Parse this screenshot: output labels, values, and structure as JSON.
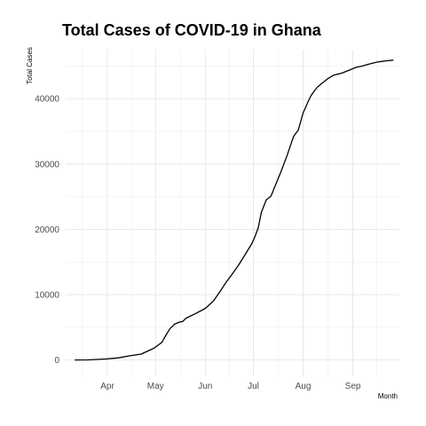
{
  "chart_data": {
    "type": "line",
    "title": "Total Cases of COVID-19 in Ghana",
    "xlabel": "Month",
    "ylabel": "Total Cases",
    "x_tick_labels": [
      "Apr",
      "May",
      "Jun",
      "Jul",
      "Aug",
      "Sep"
    ],
    "y_tick_labels": [
      "0",
      "10000",
      "20000",
      "30000",
      "40000"
    ],
    "y_ticks": [
      0,
      10000,
      20000,
      30000,
      40000
    ],
    "ylim": [
      -2500,
      47500
    ],
    "xlim": [
      "2020-03-06",
      "2020-09-30"
    ],
    "x_ticks": [
      "2020-04-01",
      "2020-05-01",
      "2020-06-01",
      "2020-07-01",
      "2020-08-01",
      "2020-09-01"
    ],
    "grid": true,
    "line_color": "#000000",
    "series": [
      {
        "x": [
          "2020-03-12",
          "2020-03-20",
          "2020-03-31",
          "2020-04-08",
          "2020-04-15",
          "2020-04-22",
          "2020-04-30",
          "2020-05-05",
          "2020-05-07",
          "2020-05-10",
          "2020-05-13",
          "2020-05-16",
          "2020-05-18",
          "2020-05-20",
          "2020-05-26",
          "2020-06-01",
          "2020-06-06",
          "2020-06-10",
          "2020-06-14",
          "2020-06-18",
          "2020-06-22",
          "2020-06-26",
          "2020-06-30",
          "2020-07-02",
          "2020-07-04",
          "2020-07-06",
          "2020-07-09",
          "2020-07-12",
          "2020-07-14",
          "2020-07-18",
          "2020-07-22",
          "2020-07-26",
          "2020-07-29",
          "2020-08-01",
          "2020-08-04",
          "2020-08-06",
          "2020-08-08",
          "2020-08-10",
          "2020-08-13",
          "2020-08-16",
          "2020-08-20",
          "2020-08-25",
          "2020-08-29",
          "2020-09-03",
          "2020-09-07",
          "2020-09-11",
          "2020-09-16",
          "2020-09-19",
          "2020-09-22",
          "2020-09-26"
        ],
        "values": [
          2,
          20,
          150,
          320,
          640,
          900,
          1800,
          2700,
          3600,
          4800,
          5500,
          5800,
          5900,
          6400,
          7100,
          7900,
          9000,
          10400,
          11900,
          13200,
          14600,
          16200,
          17800,
          18900,
          20200,
          22600,
          24500,
          25100,
          26300,
          28700,
          31300,
          34200,
          35200,
          37800,
          39500,
          40500,
          41200,
          41800,
          42400,
          43000,
          43600,
          43900,
          44300,
          44800,
          45000,
          45300,
          45600,
          45700,
          45800,
          45900
        ]
      }
    ]
  }
}
